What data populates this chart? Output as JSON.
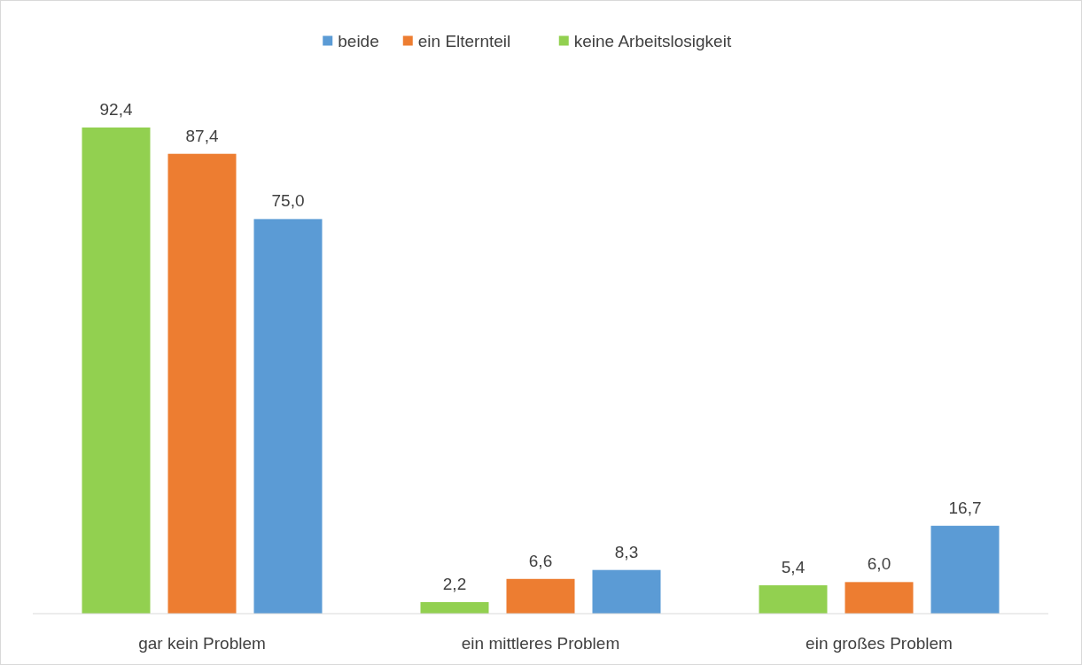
{
  "chart_data": {
    "type": "bar",
    "categories": [
      "gar kein Problem",
      "ein mittleres Problem",
      "ein großes Problem"
    ],
    "series": [
      {
        "name": "beide",
        "color": "#5b9bd5",
        "values": [
          75.0,
          8.3,
          16.7
        ],
        "value_labels": [
          "75,0",
          "8,3",
          "16,7"
        ]
      },
      {
        "name": "ein Elternteil",
        "color": "#ed7d31",
        "values": [
          87.4,
          6.6,
          6.0
        ],
        "value_labels": [
          "87,4",
          "6,6",
          "6,0"
        ]
      },
      {
        "name": "keine Arbeitslosigkeit",
        "color": "#92d050",
        "values": [
          92.4,
          2.2,
          5.4
        ],
        "value_labels": [
          "92,4",
          "2,2",
          "5,4"
        ]
      }
    ],
    "legend": "top",
    "tick_labels": "x"
  }
}
